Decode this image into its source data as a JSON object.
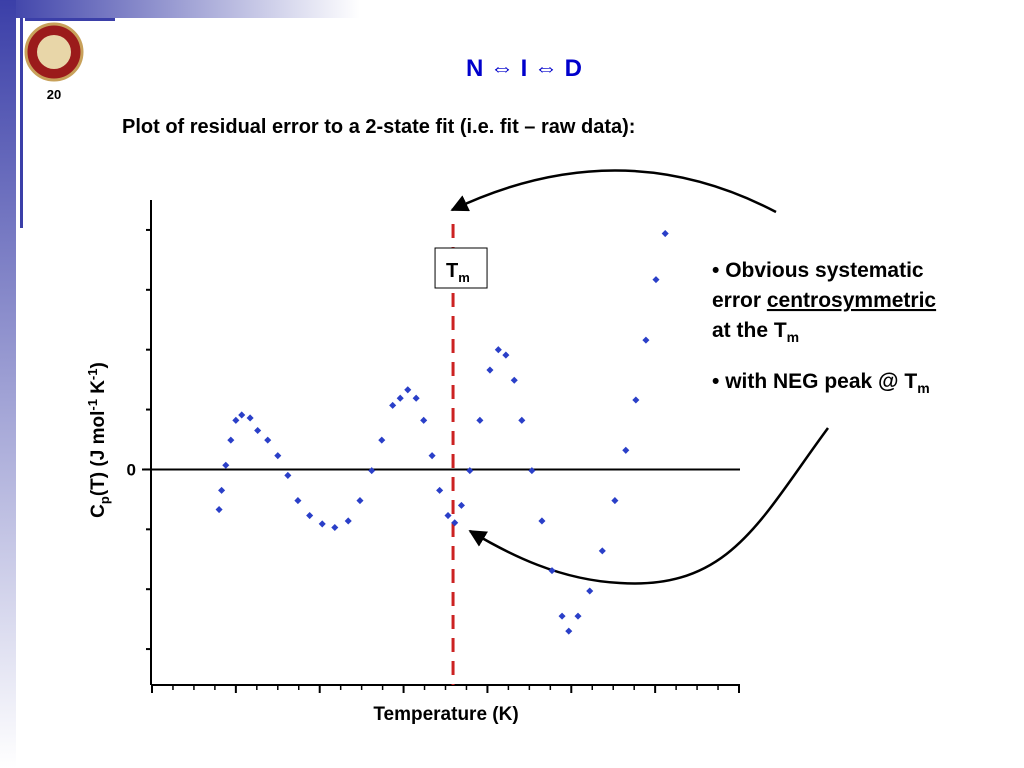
{
  "slide": {
    "number": "20",
    "title": "N ⇔ I ⇔ D",
    "heading": "Plot of residual error to a 2-state fit (i.e. fit – raw data):",
    "bullets": [
      {
        "line1": "Obvious systematic",
        "line2_start": "error ",
        "line2_underlined": "centrosymmetric",
        "line3": "at the T",
        "line3_sub": "m"
      },
      {
        "text": "with NEG peak @ T",
        "sub": "m"
      }
    ]
  },
  "chart_data": {
    "type": "scatter",
    "x_label": "Temperature (K)",
    "y_label": [
      "C",
      "p",
      "(T) (J mol",
      "-1",
      " K",
      "-1",
      ")"
    ],
    "xlim": [
      0,
      7
    ],
    "ylim": [
      -3.6,
      4.5
    ],
    "yticks": [
      0
    ],
    "y_minor_ticks": [
      -3,
      -2,
      -1,
      1,
      2,
      3,
      4
    ],
    "x_major_ticks": [
      0,
      1,
      2,
      3,
      4,
      5,
      6,
      7
    ],
    "x_minor_ticks": [
      0.25,
      0.5,
      0.75,
      1.25,
      1.5,
      1.75,
      2.25,
      2.5,
      2.75,
      3.25,
      3.5,
      3.75,
      4.25,
      4.5,
      4.75,
      5.25,
      5.5,
      5.75,
      6.25,
      6.5,
      6.75
    ],
    "zero_line": true,
    "marker": {
      "label": "T",
      "sub": "m",
      "x": 3.59,
      "color": "#cc2222"
    },
    "series": [
      {
        "color": "#2a3fc8",
        "x": [
          0.8,
          0.83,
          0.88,
          0.94,
          1.0,
          1.07,
          1.17,
          1.26,
          1.38,
          1.5,
          1.62,
          1.74,
          1.88,
          2.03,
          2.18,
          2.34,
          2.48,
          2.62,
          2.74,
          2.87,
          2.96,
          3.05,
          3.15,
          3.24,
          3.34,
          3.43,
          3.53,
          3.61,
          3.69,
          3.79,
          3.91,
          4.03,
          4.13,
          4.22,
          4.32,
          4.41,
          4.53,
          4.65,
          4.77,
          4.89,
          4.97,
          5.08,
          5.22,
          5.37,
          5.52,
          5.65,
          5.77,
          5.89,
          6.01,
          6.12
        ],
        "values": [
          -0.67,
          -0.35,
          0.07,
          0.49,
          0.82,
          0.91,
          0.86,
          0.65,
          0.49,
          0.23,
          -0.1,
          -0.52,
          -0.77,
          -0.91,
          -0.97,
          -0.86,
          -0.52,
          -0.02,
          0.49,
          1.07,
          1.19,
          1.33,
          1.19,
          0.82,
          0.23,
          -0.35,
          -0.77,
          -0.89,
          -0.6,
          -0.02,
          0.82,
          1.66,
          2.0,
          1.91,
          1.49,
          0.82,
          -0.02,
          -0.86,
          -1.69,
          -2.45,
          -2.7,
          -2.45,
          -2.03,
          -1.36,
          -0.52,
          0.32,
          1.16,
          2.16,
          3.17,
          3.94
        ]
      }
    ]
  }
}
